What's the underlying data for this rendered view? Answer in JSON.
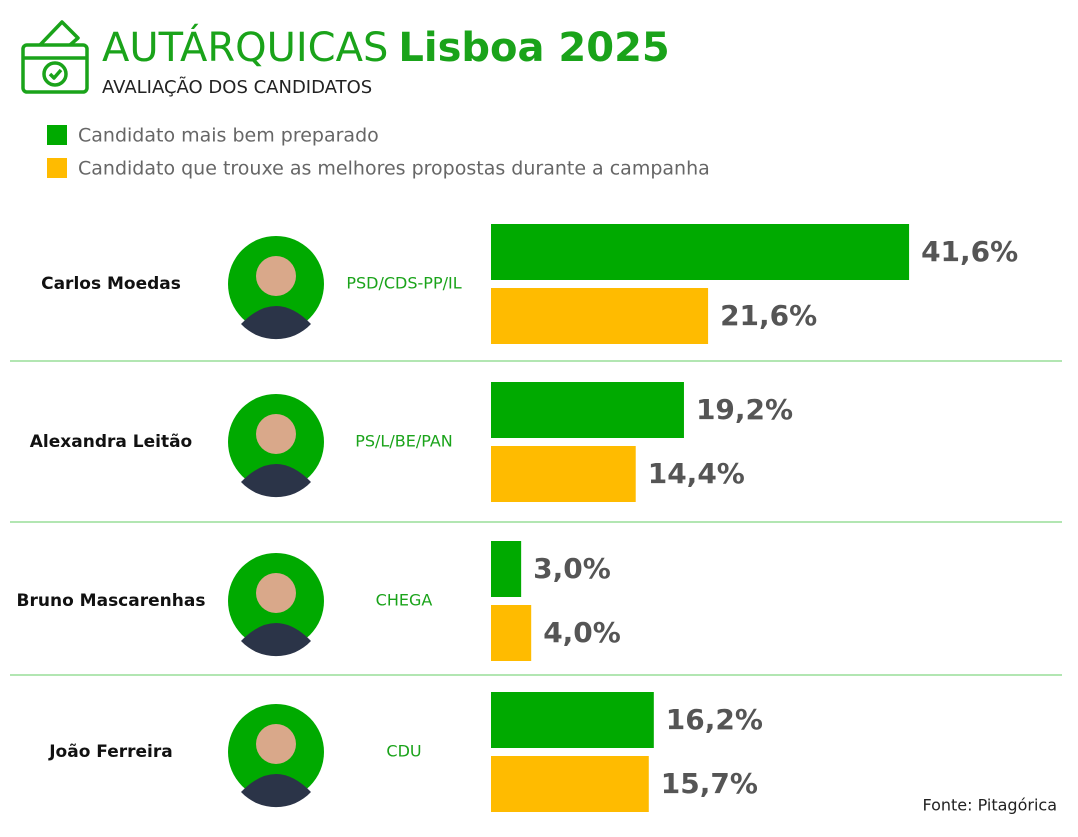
{
  "chart_data": {
    "type": "bar",
    "title": "AUTÁRQUICAS",
    "title_highlight": "Lisboa 2025",
    "subtitle": "AVALIAÇÃO DOS CANDIDATOS",
    "source": "Fonte: Pitagórica",
    "categories": [
      "Carlos Moedas",
      "Alexandra Leitão",
      "Bruno Mascarenhas",
      "João Ferreira"
    ],
    "parties": [
      "PSD/CDS-PP/IL",
      "PS/L/BE/PAN",
      "CHEGA",
      "CDU"
    ],
    "series": [
      {
        "name": "Candidato mais bem preparado",
        "color": "#00aa00",
        "values": [
          41.6,
          19.2,
          3.0,
          16.2
        ],
        "value_labels": [
          "41,6%",
          "19,2%",
          "3,0%",
          "16,2%"
        ]
      },
      {
        "name": "Candidato que trouxe as melhores propostas durante a campanha",
        "color": "#ffbb00",
        "values": [
          21.6,
          14.4,
          4.0,
          15.7
        ],
        "value_labels": [
          "21,6%",
          "14,4%",
          "4,0%",
          "15,7%"
        ]
      }
    ]
  }
}
